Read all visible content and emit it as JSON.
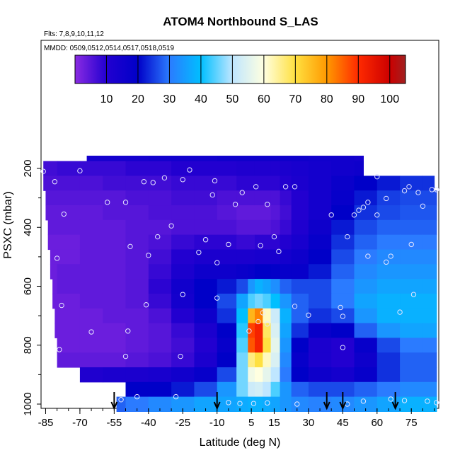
{
  "title": "ATOM4 Northbound S_LAS",
  "flights_label": "Flts: 7,8,9,10,11,12",
  "dates_label": "MMDD: 0509,0512,0514,0517,0518,0519",
  "chart_data": {
    "type": "heatmap",
    "title": "ATOM4 Northbound S_LAS",
    "xlabel": "Latitude (deg N)",
    "ylabel": "PSXC (mbar)",
    "xlim": [
      -87,
      87
    ],
    "ylim": [
      1000,
      100
    ],
    "x_ticks": [
      -85,
      -70,
      -55,
      -40,
      -25,
      -10,
      5,
      15,
      30,
      45,
      60,
      75
    ],
    "y_ticks": [
      200,
      400,
      600,
      800,
      1000
    ],
    "colorbar": {
      "ticks": [
        10,
        20,
        30,
        40,
        50,
        60,
        70,
        80,
        90,
        100
      ],
      "range": [
        0,
        105
      ],
      "stops": [
        {
          "v": 0,
          "c": "#8a2be2"
        },
        {
          "v": 10,
          "c": "#2200d0"
        },
        {
          "v": 20,
          "c": "#0000c8"
        },
        {
          "v": 30,
          "c": "#2b7bff"
        },
        {
          "v": 40,
          "c": "#00bfff"
        },
        {
          "v": 50,
          "c": "#bfe6ff"
        },
        {
          "v": 60,
          "c": "#ffffe0"
        },
        {
          "v": 70,
          "c": "#ffe040"
        },
        {
          "v": 80,
          "c": "#ff9900"
        },
        {
          "v": 90,
          "c": "#ff2a00"
        },
        {
          "v": 100,
          "c": "#cc0000"
        },
        {
          "v": 105,
          "c": "#a02020"
        }
      ]
    },
    "row_extents": [
      {
        "p": 150,
        "x0": -67,
        "x1": 54
      },
      {
        "p": 200,
        "x0": -86,
        "x1": 54
      },
      {
        "p": 250,
        "x0": -86,
        "x1": 85
      },
      {
        "p": 300,
        "x0": -85,
        "x1": 86
      },
      {
        "p": 350,
        "x0": -85,
        "x1": 86
      },
      {
        "p": 400,
        "x0": -84,
        "x1": 86
      },
      {
        "p": 450,
        "x0": -84,
        "x1": 86
      },
      {
        "p": 500,
        "x0": -83,
        "x1": 86
      },
      {
        "p": 550,
        "x0": -83,
        "x1": 86
      },
      {
        "p": 600,
        "x0": -82,
        "x1": 86
      },
      {
        "p": 650,
        "x0": -82,
        "x1": 86
      },
      {
        "p": 700,
        "x0": -81,
        "x1": 86
      },
      {
        "p": 750,
        "x0": -81,
        "x1": 86
      },
      {
        "p": 800,
        "x0": -80,
        "x1": 86
      },
      {
        "p": 850,
        "x0": -80,
        "x1": 86
      },
      {
        "p": 900,
        "x0": -70,
        "x1": 86
      },
      {
        "p": 950,
        "x0": -50,
        "x1": 86
      },
      {
        "p": 1000,
        "x0": -54,
        "x1": 86
      }
    ],
    "grid_lats": [
      -85,
      -75,
      -65,
      -55,
      -45,
      -35,
      -25,
      -15,
      -5,
      2,
      5,
      8,
      12,
      15,
      20,
      25,
      35,
      45,
      55,
      65,
      75,
      85
    ],
    "grid_p": [
      150,
      200,
      250,
      300,
      350,
      400,
      450,
      500,
      550,
      600,
      650,
      700,
      750,
      800,
      850,
      900,
      950,
      1000
    ],
    "values": [
      [
        12,
        13,
        14,
        14,
        14,
        15,
        15,
        15,
        16,
        16,
        16,
        16,
        16,
        16,
        16,
        16,
        15,
        15,
        14,
        14,
        14,
        14
      ],
      [
        7,
        8,
        8,
        8,
        9,
        9,
        10,
        10,
        10,
        11,
        11,
        11,
        11,
        11,
        12,
        13,
        14,
        15,
        16,
        17,
        18,
        18
      ],
      [
        6,
        6,
        6,
        7,
        7,
        7,
        8,
        8,
        8,
        9,
        9,
        9,
        9,
        9,
        10,
        12,
        14,
        17,
        20,
        22,
        24,
        24
      ],
      [
        5,
        5,
        5,
        5,
        6,
        6,
        7,
        7,
        6,
        6,
        6,
        6,
        6,
        6,
        8,
        10,
        14,
        18,
        22,
        25,
        26,
        26
      ],
      [
        4,
        4,
        4,
        5,
        5,
        6,
        6,
        6,
        5,
        4,
        4,
        4,
        4,
        5,
        7,
        10,
        14,
        20,
        24,
        26,
        27,
        27
      ],
      [
        4,
        4,
        4,
        4,
        5,
        5,
        6,
        6,
        6,
        5,
        5,
        5,
        5,
        6,
        8,
        11,
        16,
        22,
        26,
        28,
        28,
        28
      ],
      [
        3,
        3,
        4,
        4,
        5,
        6,
        8,
        9,
        9,
        8,
        8,
        9,
        9,
        9,
        10,
        13,
        18,
        24,
        28,
        30,
        30,
        30
      ],
      [
        3,
        3,
        4,
        4,
        5,
        7,
        10,
        12,
        12,
        12,
        12,
        13,
        13,
        13,
        14,
        16,
        20,
        26,
        30,
        32,
        32,
        32
      ],
      [
        3,
        4,
        4,
        4,
        5,
        8,
        12,
        16,
        16,
        17,
        18,
        20,
        20,
        19,
        18,
        18,
        22,
        28,
        32,
        34,
        34,
        34
      ],
      [
        3,
        4,
        4,
        4,
        5,
        9,
        15,
        20,
        22,
        26,
        34,
        38,
        36,
        33,
        28,
        26,
        26,
        30,
        34,
        36,
        36,
        36
      ],
      [
        3,
        3,
        4,
        4,
        5,
        8,
        14,
        20,
        26,
        36,
        44,
        46,
        44,
        40,
        34,
        28,
        26,
        30,
        36,
        38,
        38,
        38
      ],
      [
        3,
        3,
        3,
        4,
        4,
        6,
        10,
        16,
        24,
        40,
        76,
        82,
        62,
        52,
        38,
        28,
        24,
        26,
        34,
        38,
        38,
        38
      ],
      [
        3,
        3,
        3,
        3,
        4,
        5,
        8,
        12,
        20,
        42,
        88,
        92,
        68,
        54,
        36,
        24,
        18,
        20,
        28,
        34,
        36,
        36
      ],
      [
        3,
        3,
        3,
        3,
        4,
        5,
        7,
        10,
        18,
        44,
        86,
        92,
        70,
        56,
        34,
        20,
        12,
        10,
        18,
        26,
        30,
        30
      ],
      [
        4,
        4,
        4,
        4,
        5,
        6,
        8,
        12,
        20,
        46,
        66,
        70,
        62,
        54,
        32,
        18,
        12,
        10,
        16,
        24,
        28,
        28
      ],
      [
        10,
        11,
        11,
        12,
        12,
        13,
        15,
        18,
        26,
        46,
        58,
        60,
        56,
        50,
        30,
        20,
        16,
        14,
        18,
        24,
        28,
        28
      ],
      [
        18,
        18,
        18,
        19,
        20,
        20,
        22,
        26,
        34,
        46,
        52,
        53,
        50,
        44,
        34,
        28,
        26,
        26,
        28,
        30,
        32,
        32
      ],
      [
        26,
        26,
        27,
        28,
        30,
        32,
        34,
        36,
        36,
        37,
        38,
        38,
        37,
        36,
        34,
        32,
        31,
        32,
        34,
        36,
        38,
        38
      ]
    ],
    "sample_points": [
      [
        -86,
        210
      ],
      [
        -81,
        245
      ],
      [
        -70,
        208
      ],
      [
        -77,
        355
      ],
      [
        -80,
        505
      ],
      [
        -78,
        665
      ],
      [
        -79,
        815
      ],
      [
        -50,
        315
      ],
      [
        -48,
        465
      ],
      [
        -42,
        245
      ],
      [
        -38,
        248
      ],
      [
        -36,
        432
      ],
      [
        -33,
        232
      ],
      [
        -30,
        395
      ],
      [
        -25,
        238
      ],
      [
        -22,
        205
      ],
      [
        -18,
        485
      ],
      [
        -15,
        442
      ],
      [
        -12,
        290
      ],
      [
        -10,
        520
      ],
      [
        -40,
        495
      ],
      [
        -25,
        628
      ],
      [
        -10,
        640
      ],
      [
        -5,
        458
      ],
      [
        -2,
        322
      ],
      [
        1,
        282
      ],
      [
        4,
        752
      ],
      [
        7,
        262
      ],
      [
        9,
        462
      ],
      [
        12,
        322
      ],
      [
        15,
        432
      ],
      [
        17,
        482
      ],
      [
        20,
        262
      ],
      [
        24,
        262
      ],
      [
        24,
        668
      ],
      [
        30,
        698
      ],
      [
        40,
        358
      ],
      [
        44,
        672
      ],
      [
        45,
        702
      ],
      [
        45,
        808
      ],
      [
        47,
        432
      ],
      [
        50,
        358
      ],
      [
        52,
        342
      ],
      [
        56,
        498
      ],
      [
        60,
        358
      ],
      [
        64,
        302
      ],
      [
        64,
        518
      ],
      [
        66,
        498
      ],
      [
        72,
        276
      ],
      [
        74,
        262
      ],
      [
        75,
        458
      ],
      [
        76,
        628
      ],
      [
        78,
        282
      ],
      [
        80,
        328
      ],
      [
        84,
        272
      ],
      [
        86,
        272
      ],
      [
        70,
        688
      ],
      [
        54,
        332
      ],
      [
        56,
        315
      ],
      [
        60,
        228
      ],
      [
        -65,
        755
      ],
      [
        -50,
        838
      ],
      [
        -45,
        975
      ],
      [
        -28,
        975
      ],
      [
        -5,
        995
      ],
      [
        0,
        998
      ],
      [
        6,
        998
      ],
      [
        12,
        996
      ],
      [
        25,
        1000
      ],
      [
        47,
        1000
      ],
      [
        54,
        990
      ],
      [
        66,
        983
      ],
      [
        72,
        988
      ],
      [
        82,
        990
      ],
      [
        86,
        995
      ],
      [
        -52,
        985
      ],
      [
        -41,
        663
      ],
      [
        -49,
        752
      ],
      [
        -26,
        838
      ],
      [
        10,
        690
      ],
      [
        12,
        728
      ],
      [
        8,
        720
      ],
      [
        -58,
        315
      ],
      [
        -11,
        242
      ]
    ],
    "arrows_lat": [
      -55,
      -10,
      38,
      45,
      68
    ]
  }
}
